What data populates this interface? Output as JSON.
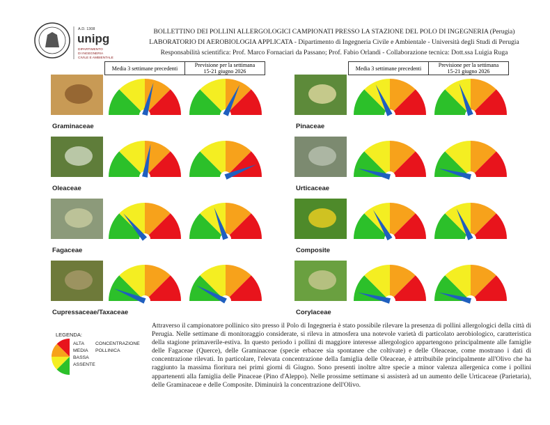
{
  "logo": {
    "year": "A.D. 1308",
    "name": "unipg",
    "department": [
      "DIPARTIMENTO",
      "DI INGEGNERIA",
      "CIVILE E AMBIENTALE"
    ]
  },
  "header": {
    "lines": [
      "BOLLETTINO DEI POLLINI ALLERGOLOGICI CAMPIONATI PRESSO LA STAZIONE DEL POLO DI INGEGNERIA (Perugia)",
      "LABORATORIO DI AEROBIOLOGIA APPLICATA - Dipartimento di Ingegneria Civile e Ambientale - Università degli Studi di Perugia",
      "Responsabilità scientifica: Prof. Marco Fornaciari da Passano; Prof. Fabio Orlandi - Collaborazione tecnica: Dott.ssa Luigia Ruga"
    ]
  },
  "columns": {
    "current": "Media 3 settimane precedenti",
    "forecast": [
      "Previsione per la settimana",
      "15-21 giugno 2026"
    ]
  },
  "plants": [
    {
      "name": "Graminaceae",
      "current": 105,
      "forecast": 115
    },
    {
      "name": "Oleaceae",
      "current": 100,
      "forecast": 158
    },
    {
      "name": "Fagaceae",
      "current": 50,
      "forecast": 70
    },
    {
      "name": "Cupressaceae/Taxaceae",
      "current": 22,
      "forecast": 28
    },
    {
      "name": "Pinaceae",
      "current": 65,
      "forecast": 70
    },
    {
      "name": "Urticaceae",
      "current": 15,
      "forecast": 15
    },
    {
      "name": "Composite",
      "current": 60,
      "forecast": 65
    },
    {
      "name": "Corylaceae",
      "current": 15,
      "forecast": 15
    }
  ],
  "legend": {
    "title": "LEGENDA:",
    "levels": [
      "ALTA",
      "MEDIA",
      "BASSA",
      "ASSENTE"
    ],
    "caption": [
      "CONCENTRAZIONE",
      "POLLINICA"
    ]
  },
  "paragraph": "Attraverso il campionatore pollinico sito presso il Polo di Ingegneria è stato possibile rilevare la presenza di pollini allergologici della città di Perugia. Nelle settimane di monitoraggio considerate, si rileva in atmosfera una notevole varietà di particolato aerobiologico, caratteristica della stagione primaverile-estiva. In questo periodo i pollini di maggiore interesse allergologico appartengono principalmente alle famiglie delle Fagaceae (Querce), delle Graminaceae (specie erbacee sia spontanee che coltivate) e delle Oleaceae, come mostrano i dati di concentrazione rilevati. In particolare, l'elevata concentrazione della famiglia delle Oleaceae, è attribuibile principalmente all'Olivo che ha raggiunto la massima fioritura nei primi giorni di Giugno. Sono presenti inoltre altre specie a minor valenza allergenica come i pollini appartenenti alla famiglia delle Pinaceae (Pino d'Aleppo). Nelle prossime settimane si assisterà ad un aumento delle Urticaceae (Parietaria), delle Graminaceae e delle Composite. Diminuirà la concentrazione dell'Olivo."
}
